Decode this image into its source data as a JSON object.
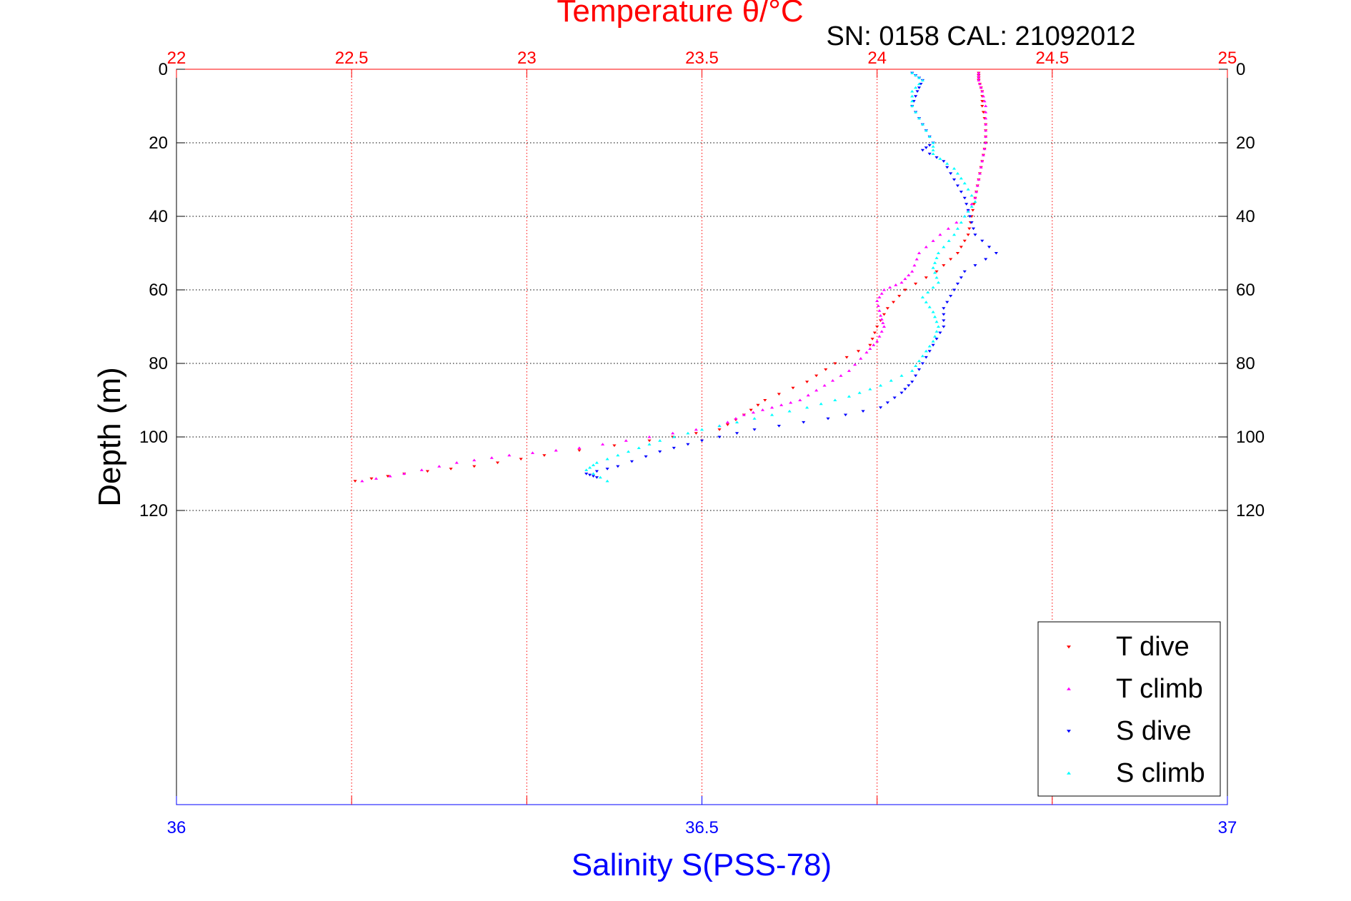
{
  "chart_data": {
    "type": "scatter",
    "title": "Temperature θ/°C",
    "subtitle": "SN: 0158  CAL: 21092012",
    "ylabel": "Depth (m)",
    "xlabel_bottom": "Salinity S(PSS-78)",
    "y_axis": {
      "ylim": [
        0,
        200
      ],
      "reversed": true,
      "ticks": [
        "0",
        "20",
        "40",
        "60",
        "80",
        "100",
        "120"
      ],
      "tick_values": [
        0,
        20,
        40,
        60,
        80,
        100,
        120
      ]
    },
    "x_top": {
      "xlim": [
        22,
        25
      ],
      "ticks": [
        "22",
        "22.5",
        "23",
        "23.5",
        "24",
        "24.5",
        "25"
      ],
      "tick_values": [
        22,
        22.5,
        23,
        23.5,
        24,
        24.5,
        25
      ],
      "color": "#ff0000",
      "grid": true
    },
    "x_bottom": {
      "xlim": [
        36,
        37
      ],
      "ticks": [
        "36",
        "36.5",
        "37"
      ],
      "tick_values": [
        36,
        36.5,
        37
      ],
      "color": "#0000ff"
    },
    "legend_position": "bottom-right",
    "series": [
      {
        "name": "T dive",
        "axis": "top",
        "color": "#ff0000",
        "marker": "triangle-down",
        "points": [
          [
            24.29,
            1
          ],
          [
            24.29,
            3
          ],
          [
            24.3,
            6
          ],
          [
            24.3,
            10
          ],
          [
            24.31,
            15
          ],
          [
            24.31,
            20
          ],
          [
            24.3,
            25
          ],
          [
            24.29,
            30
          ],
          [
            24.28,
            35
          ],
          [
            24.27,
            40
          ],
          [
            24.26,
            45
          ],
          [
            24.23,
            50
          ],
          [
            24.17,
            55
          ],
          [
            24.08,
            60
          ],
          [
            24.03,
            65
          ],
          [
            24.0,
            70
          ],
          [
            23.98,
            75
          ],
          [
            23.88,
            80
          ],
          [
            23.8,
            85
          ],
          [
            23.68,
            90
          ],
          [
            23.62,
            94
          ],
          [
            23.55,
            98
          ],
          [
            23.35,
            101
          ],
          [
            23.05,
            105
          ],
          [
            22.85,
            108
          ],
          [
            22.65,
            110
          ],
          [
            22.51,
            112
          ]
        ]
      },
      {
        "name": "T climb",
        "axis": "top",
        "color": "#ff00ff",
        "marker": "triangle-up",
        "points": [
          [
            24.29,
            1
          ],
          [
            24.29,
            3
          ],
          [
            24.3,
            6
          ],
          [
            24.31,
            10
          ],
          [
            24.31,
            15
          ],
          [
            24.31,
            20
          ],
          [
            24.3,
            25
          ],
          [
            24.29,
            30
          ],
          [
            24.28,
            35
          ],
          [
            24.25,
            40
          ],
          [
            24.18,
            45
          ],
          [
            24.12,
            50
          ],
          [
            24.1,
            55
          ],
          [
            24.07,
            58
          ],
          [
            24.02,
            60
          ],
          [
            24.0,
            63
          ],
          [
            24.01,
            67
          ],
          [
            24.02,
            70
          ],
          [
            24.0,
            74
          ],
          [
            23.97,
            77
          ],
          [
            23.92,
            82
          ],
          [
            23.85,
            86
          ],
          [
            23.78,
            90
          ],
          [
            23.7,
            92
          ],
          [
            23.62,
            94
          ],
          [
            23.55,
            97
          ],
          [
            23.35,
            100
          ],
          [
            23.15,
            103
          ],
          [
            22.95,
            105
          ],
          [
            22.8,
            107
          ],
          [
            22.65,
            110
          ],
          [
            22.53,
            112
          ]
        ]
      },
      {
        "name": "S dive",
        "axis": "bottom",
        "color": "#0000ff",
        "marker": "triangle-down",
        "points": [
          [
            36.7,
            1
          ],
          [
            36.71,
            3
          ],
          [
            36.705,
            6
          ],
          [
            36.7,
            10
          ],
          [
            36.71,
            15
          ],
          [
            36.72,
            20
          ],
          [
            36.71,
            22
          ],
          [
            36.73,
            25
          ],
          [
            36.74,
            30
          ],
          [
            36.75,
            35
          ],
          [
            36.755,
            40
          ],
          [
            36.76,
            45
          ],
          [
            36.78,
            50
          ],
          [
            36.75,
            55
          ],
          [
            36.74,
            60
          ],
          [
            36.73,
            65
          ],
          [
            36.73,
            70
          ],
          [
            36.72,
            75
          ],
          [
            36.71,
            80
          ],
          [
            36.7,
            85
          ],
          [
            36.69,
            88
          ],
          [
            36.67,
            92
          ],
          [
            36.62,
            95
          ],
          [
            36.55,
            98
          ],
          [
            36.5,
            101
          ],
          [
            36.46,
            104
          ],
          [
            36.42,
            108
          ],
          [
            36.39,
            110
          ],
          [
            36.4,
            111
          ]
        ]
      },
      {
        "name": "S climb",
        "axis": "bottom",
        "color": "#00ffff",
        "marker": "triangle-up",
        "points": [
          [
            36.7,
            1
          ],
          [
            36.71,
            3
          ],
          [
            36.7,
            6
          ],
          [
            36.7,
            10
          ],
          [
            36.71,
            15
          ],
          [
            36.72,
            20
          ],
          [
            36.72,
            23
          ],
          [
            36.74,
            27
          ],
          [
            36.75,
            31
          ],
          [
            36.76,
            36
          ],
          [
            36.75,
            40
          ],
          [
            36.74,
            45
          ],
          [
            36.725,
            50
          ],
          [
            36.72,
            54
          ],
          [
            36.725,
            58
          ],
          [
            36.71,
            62
          ],
          [
            36.72,
            66
          ],
          [
            36.725,
            70
          ],
          [
            36.72,
            74
          ],
          [
            36.71,
            78
          ],
          [
            36.7,
            82
          ],
          [
            36.67,
            86
          ],
          [
            36.64,
            89
          ],
          [
            36.6,
            92
          ],
          [
            36.55,
            95
          ],
          [
            36.5,
            98
          ],
          [
            36.46,
            101
          ],
          [
            36.43,
            104
          ],
          [
            36.4,
            107
          ],
          [
            36.39,
            109
          ],
          [
            36.41,
            112
          ]
        ]
      }
    ]
  }
}
